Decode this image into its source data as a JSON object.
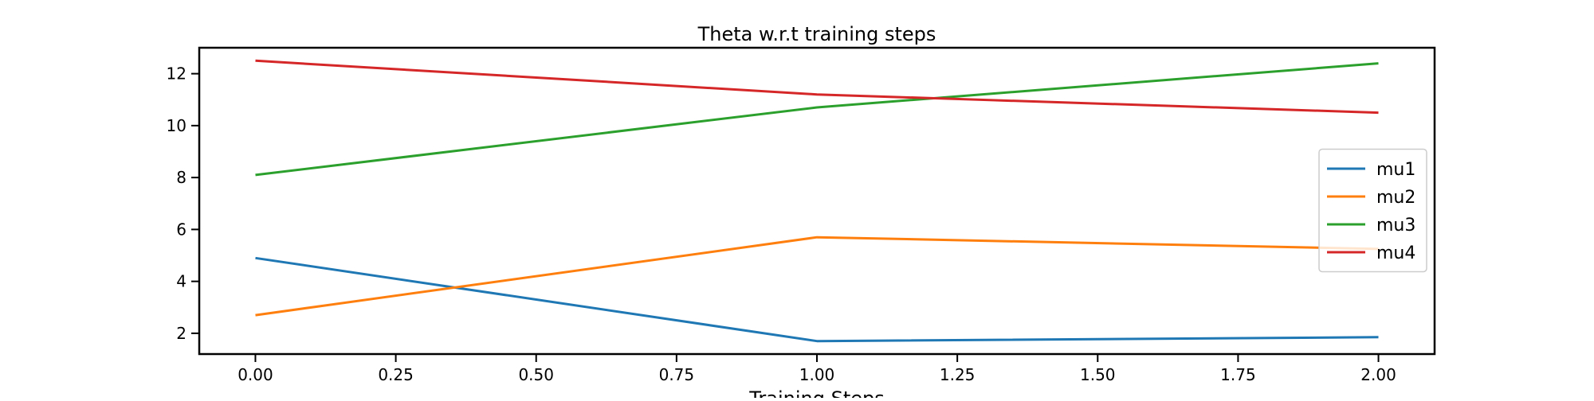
{
  "chart_data": {
    "type": "line",
    "title": "Theta w.r.t training steps",
    "xlabel": "Training Steps",
    "ylabel": "",
    "x": [
      0,
      1,
      2
    ],
    "xlim": [
      -0.1,
      2.1
    ],
    "ylim": [
      1.2,
      13.0
    ],
    "xticks": [
      0.0,
      0.25,
      0.5,
      0.75,
      1.0,
      1.25,
      1.5,
      1.75,
      2.0
    ],
    "xtick_labels": [
      "0.00",
      "0.25",
      "0.50",
      "0.75",
      "1.00",
      "1.25",
      "1.50",
      "1.75",
      "2.00"
    ],
    "yticks": [
      2,
      4,
      6,
      8,
      10,
      12
    ],
    "ytick_labels": [
      "2",
      "4",
      "6",
      "8",
      "10",
      "12"
    ],
    "grid": false,
    "legend_position": "center-right",
    "series": [
      {
        "name": "mu1",
        "color": "#1f77b4",
        "values": [
          4.9,
          1.7,
          1.85
        ]
      },
      {
        "name": "mu2",
        "color": "#ff7f0e",
        "values": [
          2.7,
          5.7,
          5.25
        ]
      },
      {
        "name": "mu3",
        "color": "#2ca02c",
        "values": [
          8.1,
          10.7,
          12.4
        ]
      },
      {
        "name": "mu4",
        "color": "#d62728",
        "values": [
          12.5,
          11.2,
          10.5
        ]
      }
    ]
  }
}
